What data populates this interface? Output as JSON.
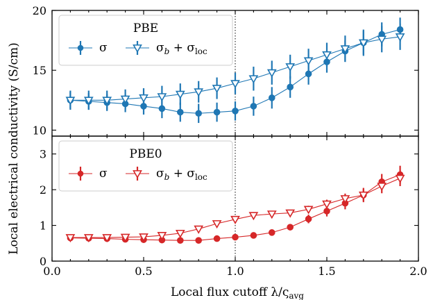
{
  "chart_data": [
    {
      "type": "line",
      "panel": "top",
      "title": "",
      "legend_title": "PBE",
      "legend_placement": "upper-left",
      "ylabel": "",
      "xlim": [
        0.0,
        2.0
      ],
      "ylim": [
        9.5,
        20.0
      ],
      "yticks": [
        10,
        15,
        20
      ],
      "xticks": [
        0.0,
        0.5,
        1.0,
        1.5,
        2.0
      ],
      "color": "#1f77b4",
      "vline_x": 1.0,
      "x": [
        0.1,
        0.2,
        0.3,
        0.4,
        0.5,
        0.6,
        0.7,
        0.8,
        0.9,
        1.0,
        1.1,
        1.2,
        1.3,
        1.4,
        1.5,
        1.6,
        1.7,
        1.8,
        1.9
      ],
      "series": [
        {
          "name": "σ",
          "marker": "circle",
          "values": [
            12.5,
            12.4,
            12.3,
            12.2,
            12.0,
            11.8,
            11.5,
            11.4,
            11.5,
            11.6,
            12.0,
            12.7,
            13.6,
            14.7,
            15.7,
            16.6,
            17.3,
            18.0,
            18.4
          ],
          "errors": [
            0.7,
            0.7,
            0.7,
            0.7,
            0.7,
            0.8,
            0.8,
            0.8,
            0.8,
            0.8,
            0.8,
            0.9,
            0.9,
            0.9,
            0.9,
            0.9,
            1.0,
            1.0,
            1.0
          ]
        },
        {
          "name": "σ_b + σ_loc",
          "marker": "triangle-down-open",
          "values": [
            12.5,
            12.5,
            12.5,
            12.6,
            12.7,
            12.8,
            13.0,
            13.2,
            13.5,
            13.9,
            14.3,
            14.8,
            15.3,
            15.8,
            16.3,
            16.8,
            17.3,
            17.6,
            17.8
          ],
          "errors": [
            0.8,
            0.8,
            0.8,
            0.8,
            0.8,
            0.9,
            0.9,
            0.9,
            0.9,
            0.9,
            1.0,
            1.0,
            1.0,
            1.0,
            1.0,
            1.1,
            1.1,
            1.1,
            1.1
          ]
        }
      ]
    },
    {
      "type": "line",
      "panel": "bottom",
      "title": "",
      "legend_title": "PBE0",
      "legend_placement": "upper-left",
      "ylabel": "",
      "xlim": [
        0.0,
        2.0
      ],
      "ylim": [
        0.0,
        3.5
      ],
      "yticks": [
        0,
        1,
        2,
        3
      ],
      "xticks": [
        0.0,
        0.5,
        1.0,
        1.5,
        2.0
      ],
      "color": "#d62728",
      "vline_x": 1.0,
      "x": [
        0.1,
        0.2,
        0.3,
        0.4,
        0.5,
        0.6,
        0.7,
        0.8,
        0.9,
        1.0,
        1.1,
        1.2,
        1.3,
        1.4,
        1.5,
        1.6,
        1.7,
        1.8,
        1.9
      ],
      "series": [
        {
          "name": "σ",
          "marker": "circle",
          "values": [
            0.65,
            0.64,
            0.63,
            0.61,
            0.6,
            0.59,
            0.58,
            0.58,
            0.63,
            0.67,
            0.72,
            0.8,
            0.95,
            1.18,
            1.4,
            1.62,
            1.85,
            2.22,
            2.42
          ],
          "errors": [
            0.05,
            0.05,
            0.05,
            0.05,
            0.05,
            0.05,
            0.05,
            0.05,
            0.06,
            0.06,
            0.06,
            0.07,
            0.08,
            0.12,
            0.15,
            0.17,
            0.2,
            0.22,
            0.25
          ]
        },
        {
          "name": "σ_b + σ_loc",
          "marker": "triangle-down-open",
          "values": [
            0.66,
            0.66,
            0.66,
            0.67,
            0.68,
            0.72,
            0.78,
            0.9,
            1.05,
            1.17,
            1.28,
            1.32,
            1.35,
            1.45,
            1.6,
            1.75,
            1.85,
            2.1,
            2.32
          ],
          "errors": [
            0.05,
            0.05,
            0.05,
            0.05,
            0.05,
            0.05,
            0.06,
            0.06,
            0.07,
            0.08,
            0.08,
            0.08,
            0.08,
            0.1,
            0.12,
            0.14,
            0.16,
            0.2,
            0.22
          ]
        }
      ]
    }
  ],
  "shared": {
    "ylabel": "Local electrical conductivity (S/cm)",
    "xlabel": "Local flux cutoff λ/ς",
    "xlabel_sub": "avg",
    "legend_sigma": "σ",
    "legend_sigma_b": "σ",
    "legend_sub_b": "b",
    "legend_plus": " + σ",
    "legend_sub_loc": "loc"
  }
}
